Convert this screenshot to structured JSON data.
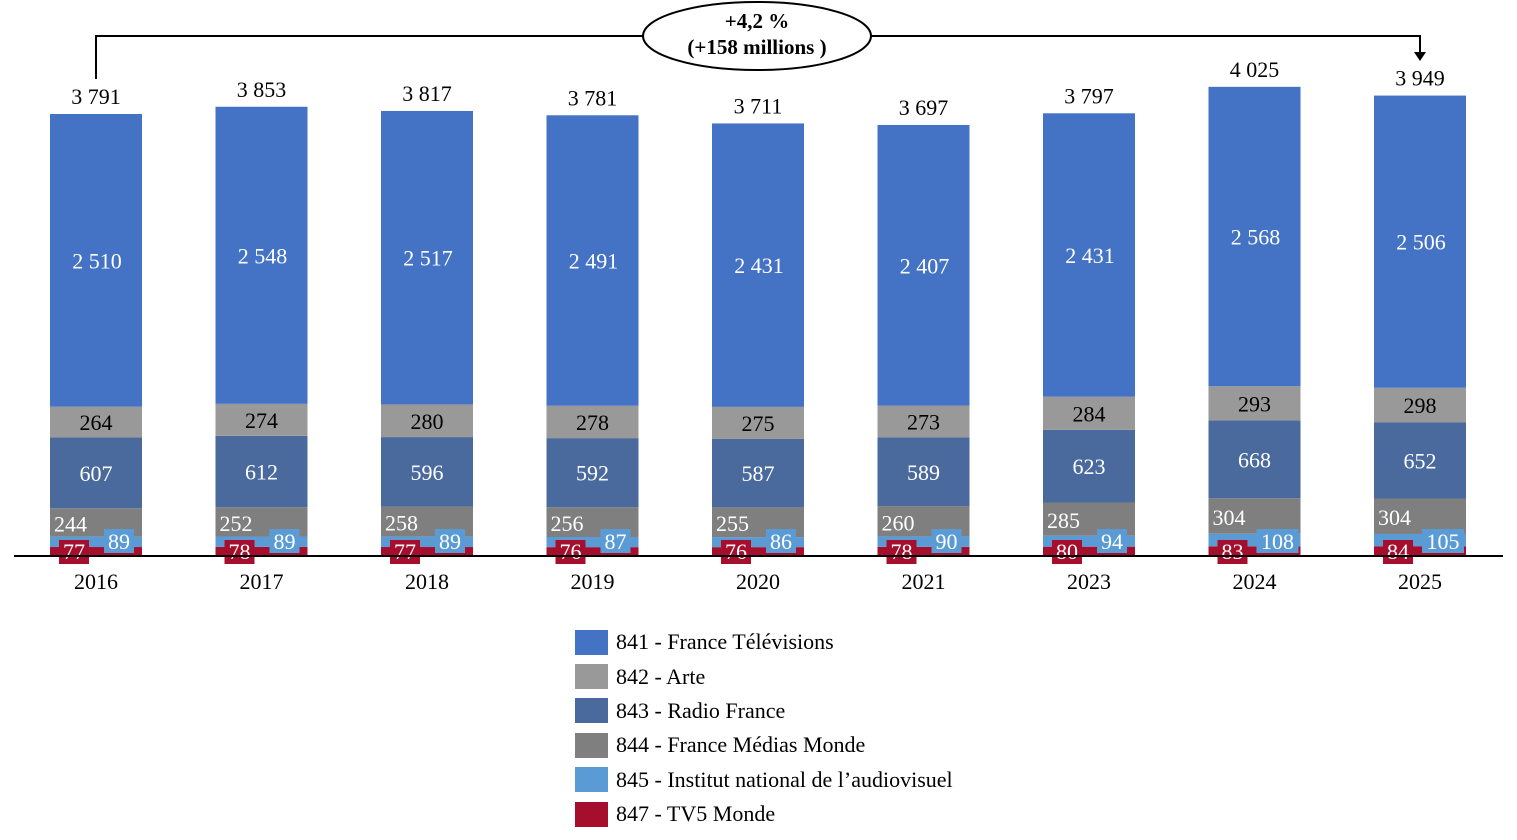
{
  "chart_data": {
    "type": "stacked-bar",
    "categories": [
      "2016",
      "2017",
      "2018",
      "2019",
      "2020",
      "2021",
      "2023",
      "2024",
      "2025"
    ],
    "series": [
      {
        "name": "847 - TV5 Monde",
        "color": "#A50F2D",
        "values": [
          77,
          78,
          77,
          76,
          76,
          78,
          80,
          83,
          84
        ]
      },
      {
        "name": "845 - Institut national de l’audiovisuel",
        "color": "#5B9BD5",
        "values": [
          89,
          89,
          89,
          87,
          86,
          90,
          94,
          108,
          105
        ]
      },
      {
        "name": "844 - France Médias Monde",
        "color": "#7F7F7F",
        "values": [
          244,
          252,
          258,
          256,
          255,
          260,
          285,
          304,
          304
        ]
      },
      {
        "name": "843 - Radio France",
        "color": "#4A6A9E",
        "values": [
          607,
          612,
          596,
          592,
          587,
          589,
          623,
          668,
          652
        ]
      },
      {
        "name": "842 - Arte",
        "color": "#999999",
        "values": [
          264,
          274,
          280,
          278,
          275,
          273,
          284,
          293,
          298
        ]
      },
      {
        "name": "841 - France Télévisions",
        "color": "#4472C4",
        "values": [
          2510,
          2548,
          2517,
          2491,
          2431,
          2407,
          2431,
          2568,
          2506
        ]
      }
    ],
    "totals": [
      "3 791",
      "3 853",
      "3 817",
      "3 781",
      "3 711",
      "3 697",
      "3 797",
      "4 025",
      "3 949"
    ],
    "value_labels": {
      "841 - France Télévisions": [
        "2 510",
        "2 548",
        "2 517",
        "2 491",
        "2 431",
        "2 407",
        "2 431",
        "2 568",
        "2 506"
      ]
    },
    "annotation": {
      "line1": "+4,2 %",
      "line2": "(+158 millions )",
      "from": "2016",
      "to": "2025"
    },
    "legend_position": "bottom",
    "grid": false,
    "ylim": [
      0,
      4025
    ]
  }
}
